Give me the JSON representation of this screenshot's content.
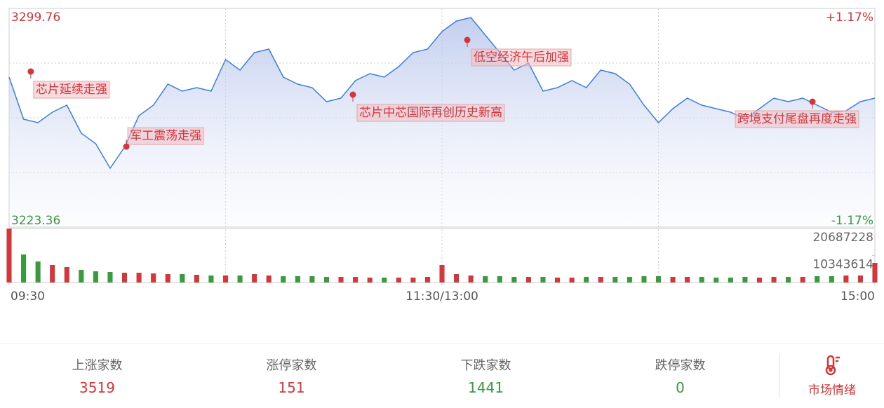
{
  "chart_data": {
    "type": "line",
    "x": [
      0,
      4,
      8,
      12,
      16,
      20,
      24,
      28,
      32,
      36,
      40,
      44,
      48,
      52,
      56,
      60,
      64,
      68,
      72,
      76,
      80,
      84,
      88,
      92,
      96,
      100,
      104,
      108,
      112,
      116,
      120,
      124,
      128,
      132,
      136,
      140,
      144,
      148,
      152,
      156,
      160,
      164,
      168,
      172,
      176,
      180,
      184,
      188,
      192,
      196,
      200,
      204,
      208,
      212,
      216,
      220,
      224,
      228,
      232,
      236,
      240
    ],
    "xlim": [
      0,
      240
    ],
    "xticks": [
      {
        "value": 0,
        "label": "09:30"
      },
      {
        "value": 120,
        "label": "11:30/13:00"
      },
      {
        "value": 240,
        "label": "15:00"
      }
    ],
    "ylim": [
      3223.36,
      3299.76
    ],
    "yticks": [
      3223.36,
      3299.76
    ],
    "y2lim": [
      -1.17,
      1.17
    ],
    "y2ticks": [
      {
        "value": -1.17,
        "label": "-1.17%"
      },
      {
        "value": 1.17,
        "label": "+1.17%"
      }
    ],
    "up_color": "#d2373b",
    "down_color": "#3a9a3e",
    "grid": true,
    "series": [
      {
        "color": "#3b7fd9",
        "values": [
          3275.76,
          3261.07,
          3259.85,
          3263.52,
          3265.97,
          3256.17,
          3252.5,
          3243.93,
          3251.28,
          3262.29,
          3265.97,
          3273.31,
          3270.87,
          3272.09,
          3270.87,
          3281.88,
          3278.21,
          3284.33,
          3285.56,
          3275.76,
          3273.31,
          3272.09,
          3267.19,
          3268.42,
          3274.54,
          3276.99,
          3275.76,
          3279.44,
          3284.33,
          3285.56,
          3291.68,
          3295.35,
          3296.58,
          3290.45,
          3284.33,
          3278.21,
          3280.66,
          3270.87,
          3272.09,
          3274.54,
          3272.09,
          3278.21,
          3276.99,
          3273.31,
          3265.97,
          3259.85,
          3264.74,
          3268.42,
          3265.97,
          3264.74,
          3263.52,
          3261.07,
          3264.74,
          3268.42,
          3267.19,
          3268.42,
          3265.97,
          3263.52,
          3264.01,
          3267.19,
          3268.42
        ]
      }
    ],
    "annotations": [
      {
        "x": 6,
        "y": 3277.72,
        "text": "芯片延续走强"
      },
      {
        "x": 32.5,
        "y": 3251.5,
        "text": "军工震荡走强"
      },
      {
        "x": 95.3,
        "y": 3269.64,
        "text": "芯片中芯国际再创历史新高"
      },
      {
        "x": 127,
        "y": 3288.74,
        "text": "低空经济午后加强"
      },
      {
        "x": 222.7,
        "y": 3267.19,
        "text": "跨境支付尾盘再度走强"
      }
    ],
    "volume": {
      "ylim": [
        0,
        20687228
      ],
      "yticks": [
        10343614,
        20687228
      ],
      "values": [
        20687000,
        10747000,
        8060000,
        6717000,
        5911000,
        4836000,
        4299000,
        4030000,
        3761000,
        3761000,
        3493000,
        3224000,
        3224000,
        2955000,
        2687000,
        2687000,
        2687000,
        3224000,
        2687000,
        2418000,
        2418000,
        2418000,
        2149000,
        2149000,
        2149000,
        1881000,
        1881000,
        1881000,
        1881000,
        2149000,
        6717000,
        3224000,
        2687000,
        2418000,
        2418000,
        2149000,
        2149000,
        2149000,
        1881000,
        1881000,
        2149000,
        2149000,
        2149000,
        2149000,
        2418000,
        2418000,
        2149000,
        2149000,
        2149000,
        1881000,
        1881000,
        2149000,
        1881000,
        2149000,
        2149000,
        2149000,
        2418000,
        2418000,
        2687000,
        2687000,
        7523000
      ]
    }
  },
  "stats": [
    {
      "label": "上涨家数",
      "value": 3519,
      "color": "#d2373b"
    },
    {
      "label": "涨停家数",
      "value": 151,
      "color": "#d2373b"
    },
    {
      "label": "下跌家数",
      "value": 1441,
      "color": "#3a9a3e"
    },
    {
      "label": "跌停家数",
      "value": 0,
      "color": "#3a9a3e"
    }
  ],
  "sentiment_button": "市场情绪"
}
